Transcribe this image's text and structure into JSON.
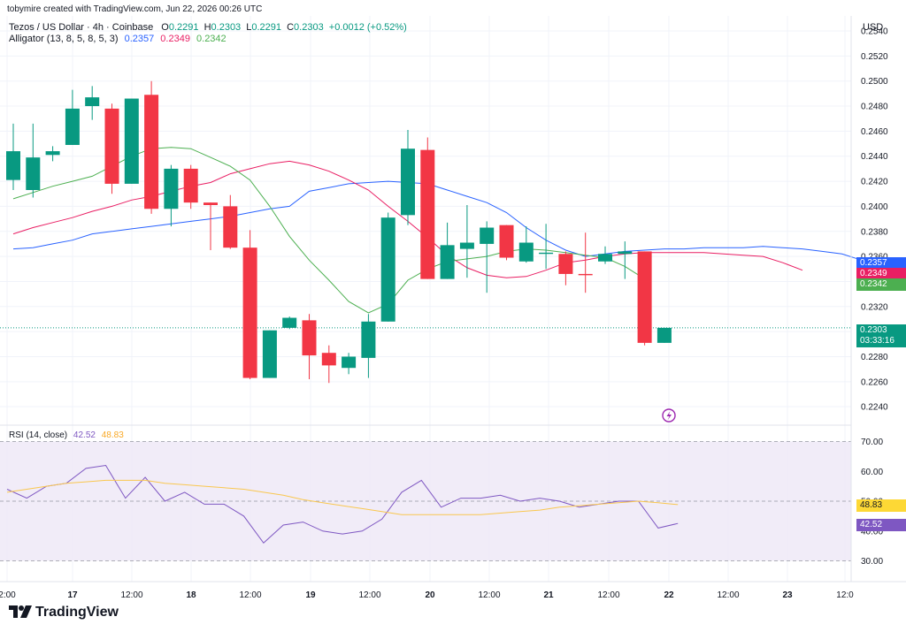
{
  "header": {
    "creator": "tobymire created with TradingView.com, Jun 22, 2026 00:26 UTC",
    "symbol": "Tezos / US Dollar · 4h · Coinbase",
    "o_label": "O",
    "o_value": "0.2291",
    "h_label": "H",
    "h_value": "0.2303",
    "l_label": "L",
    "l_value": "0.2291",
    "c_label": "C",
    "c_value": "0.2303",
    "change": "+0.0012 (+0.52%)",
    "alligator_label": "Alligator (13, 8, 5, 8, 5, 3)",
    "alligator_jaw": "0.2357",
    "alligator_teeth": "0.2349",
    "alligator_lips": "0.2342",
    "currency": "USD",
    "rsi_label": "RSI (14, close)",
    "rsi_value": "42.52",
    "rsi_ma_value": "48.83"
  },
  "price_tags": {
    "jaw": "0.2357",
    "teeth": "0.2349",
    "lips": "0.2342",
    "last": "0.2303",
    "countdown": "03:33:16",
    "rsi_ma": "48.83",
    "rsi": "42.52"
  },
  "brand": "TradingView",
  "colors": {
    "up": "#089981",
    "down": "#f23645",
    "jaw": "#2962ff",
    "teeth": "#e91e63",
    "lips": "#4caf50",
    "rsi": "#7e57c2",
    "rsi_ma": "#fdd835",
    "rsi_band": "#ede7f6"
  },
  "chart_data": [
    {
      "type": "candlestick",
      "title": "Tezos / US Dollar · 4h · Coinbase",
      "ylim": [
        0.2226,
        0.2552
      ],
      "y_ticks": [
        "0.2540",
        "0.2520",
        "0.2500",
        "0.2480",
        "0.2460",
        "0.2440",
        "0.2420",
        "0.2400",
        "0.2380",
        "0.2360",
        "0.2340",
        "0.2320",
        "0.2300",
        "0.2280",
        "0.2260",
        "0.2240"
      ],
      "x_tick_labels": [
        "2:00",
        "17",
        "12:00",
        "18",
        "12:00",
        "19",
        "12:00",
        "20",
        "12:00",
        "21",
        "12:00",
        "22",
        "12:00",
        "23",
        "12:0"
      ],
      "candles": [
        {
          "o": 0.2421,
          "h": 0.2466,
          "l": 0.2413,
          "c": 0.2444
        },
        {
          "o": 0.2413,
          "h": 0.2466,
          "l": 0.2407,
          "c": 0.2439
        },
        {
          "o": 0.2441,
          "h": 0.2448,
          "l": 0.2436,
          "c": 0.2444
        },
        {
          "o": 0.2449,
          "h": 0.2493,
          "l": 0.2449,
          "c": 0.2478
        },
        {
          "o": 0.248,
          "h": 0.2496,
          "l": 0.2469,
          "c": 0.2487
        },
        {
          "o": 0.2478,
          "h": 0.2482,
          "l": 0.241,
          "c": 0.2418
        },
        {
          "o": 0.2418,
          "h": 0.2486,
          "l": 0.2418,
          "c": 0.2486
        },
        {
          "o": 0.2489,
          "h": 0.25,
          "l": 0.2394,
          "c": 0.2398
        },
        {
          "o": 0.2398,
          "h": 0.2433,
          "l": 0.2384,
          "c": 0.243
        },
        {
          "o": 0.243,
          "h": 0.2433,
          "l": 0.2398,
          "c": 0.2403
        },
        {
          "o": 0.2403,
          "h": 0.2403,
          "l": 0.2365,
          "c": 0.2401
        },
        {
          "o": 0.24,
          "h": 0.2409,
          "l": 0.2366,
          "c": 0.2367
        },
        {
          "o": 0.2367,
          "h": 0.2381,
          "l": 0.2262,
          "c": 0.2263
        },
        {
          "o": 0.2263,
          "h": 0.2301,
          "l": 0.2263,
          "c": 0.2301
        },
        {
          "o": 0.2303,
          "h": 0.2312,
          "l": 0.2302,
          "c": 0.2311
        },
        {
          "o": 0.2309,
          "h": 0.2314,
          "l": 0.2262,
          "c": 0.2281
        },
        {
          "o": 0.2283,
          "h": 0.2289,
          "l": 0.2259,
          "c": 0.2273
        },
        {
          "o": 0.2271,
          "h": 0.2283,
          "l": 0.2266,
          "c": 0.228
        },
        {
          "o": 0.2279,
          "h": 0.2314,
          "l": 0.2263,
          "c": 0.2308
        },
        {
          "o": 0.2308,
          "h": 0.2395,
          "l": 0.2308,
          "c": 0.2391
        },
        {
          "o": 0.2393,
          "h": 0.2461,
          "l": 0.2385,
          "c": 0.2446
        },
        {
          "o": 0.2445,
          "h": 0.2455,
          "l": 0.2342,
          "c": 0.2342
        },
        {
          "o": 0.2342,
          "h": 0.2387,
          "l": 0.2342,
          "c": 0.2369
        },
        {
          "o": 0.2366,
          "h": 0.2401,
          "l": 0.2343,
          "c": 0.2371
        },
        {
          "o": 0.237,
          "h": 0.2388,
          "l": 0.2331,
          "c": 0.2383
        },
        {
          "o": 0.2385,
          "h": 0.2385,
          "l": 0.2357,
          "c": 0.2359
        },
        {
          "o": 0.2356,
          "h": 0.2384,
          "l": 0.2355,
          "c": 0.2371
        },
        {
          "o": 0.2362,
          "h": 0.2386,
          "l": 0.235,
          "c": 0.2363
        },
        {
          "o": 0.2362,
          "h": 0.2364,
          "l": 0.2337,
          "c": 0.2346
        },
        {
          "o": 0.2346,
          "h": 0.2379,
          "l": 0.2331,
          "c": 0.2345
        },
        {
          "o": 0.2356,
          "h": 0.2368,
          "l": 0.2354,
          "c": 0.2362
        },
        {
          "o": 0.2362,
          "h": 0.2372,
          "l": 0.2342,
          "c": 0.2364
        },
        {
          "o": 0.2364,
          "h": 0.2364,
          "l": 0.2289,
          "c": 0.2291
        },
        {
          "o": 0.2291,
          "h": 0.2303,
          "l": 0.2291,
          "c": 0.2303
        }
      ],
      "series": [
        {
          "name": "Jaw",
          "values": [
            0.2366,
            0.2367,
            0.237,
            0.2373,
            0.2378,
            0.238,
            0.2382,
            0.2384,
            0.2386,
            0.2388,
            0.239,
            0.2392,
            0.2395,
            0.2398,
            0.24,
            0.2412,
            0.2415,
            0.2418,
            0.2419,
            0.242,
            0.2419,
            0.2418,
            0.2413,
            0.2408,
            0.2403,
            0.2395,
            0.2383,
            0.2373,
            0.2365,
            0.236,
            0.2362,
            0.2364,
            0.2365,
            0.2366,
            0.2366,
            0.2367,
            0.2367,
            0.2367,
            0.2368,
            0.2367,
            0.2366,
            0.2364,
            0.2362,
            0.2357
          ]
        },
        {
          "name": "Teeth",
          "values": [
            0.2378,
            0.2383,
            0.2387,
            0.2391,
            0.2396,
            0.24,
            0.2405,
            0.2408,
            0.2412,
            0.2416,
            0.2419,
            0.2426,
            0.243,
            0.2434,
            0.2436,
            0.2433,
            0.2428,
            0.2421,
            0.2413,
            0.24,
            0.2388,
            0.2375,
            0.2361,
            0.2351,
            0.2345,
            0.2343,
            0.2344,
            0.2349,
            0.2355,
            0.2357,
            0.236,
            0.2362,
            0.2363,
            0.2363,
            0.2363,
            0.2363,
            0.2362,
            0.2361,
            0.236,
            0.2355,
            0.2349
          ]
        },
        {
          "name": "Lips",
          "values": [
            0.2406,
            0.2411,
            0.2416,
            0.242,
            0.2424,
            0.2432,
            0.244,
            0.2446,
            0.2447,
            0.2446,
            0.2439,
            0.2432,
            0.2421,
            0.24,
            0.2376,
            0.2357,
            0.2341,
            0.2324,
            0.2315,
            0.2322,
            0.2341,
            0.235,
            0.2356,
            0.2358,
            0.236,
            0.2364,
            0.2366,
            0.2365,
            0.2363,
            0.2361,
            0.2359,
            0.2352,
            0.2342
          ]
        }
      ]
    },
    {
      "type": "line",
      "title": "RSI (14, close)",
      "ylim": [
        26,
        74
      ],
      "y_ticks": [
        "70.00",
        "60.00",
        "50.00",
        "40.00",
        "30.00"
      ],
      "bands": [
        70,
        50,
        30
      ],
      "series": [
        {
          "name": "RSI",
          "values": [
            54,
            51,
            55,
            56,
            61,
            62,
            51,
            58,
            50,
            53,
            49,
            49,
            45,
            36,
            42,
            43,
            40,
            39,
            40,
            44,
            53,
            57,
            48,
            51,
            51,
            52,
            50,
            51,
            50,
            48,
            49,
            50,
            50,
            41,
            42.52
          ]
        },
        {
          "name": "RSI MA",
          "values": [
            53,
            54,
            55,
            56,
            56.5,
            57,
            57,
            57,
            56,
            55.5,
            55,
            54.5,
            54,
            53,
            52,
            50.5,
            49.5,
            48.5,
            47.5,
            46.5,
            45.5,
            45.5,
            45.5,
            45.5,
            45.5,
            46,
            46.5,
            47,
            48,
            48.5,
            49,
            49.5,
            50,
            49.5,
            48.83
          ]
        }
      ]
    }
  ]
}
